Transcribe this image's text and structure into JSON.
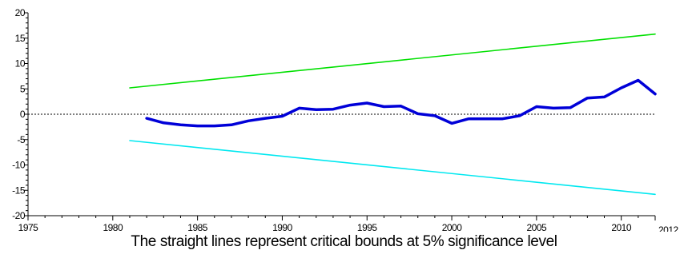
{
  "chart_data": {
    "type": "line",
    "title": "",
    "xlabel": "",
    "ylabel": "",
    "xlim": [
      1975,
      2012
    ],
    "ylim": [
      -20,
      20
    ],
    "x_ticks": [
      1975,
      1980,
      1985,
      1990,
      1995,
      2000,
      2005,
      2010,
      2012
    ],
    "y_ticks": [
      -20,
      -15,
      -10,
      -5,
      0,
      5,
      10,
      15,
      20
    ],
    "x_tick_labels": [
      "1975",
      "1980",
      "1985",
      "1990",
      "1995",
      "2000",
      "2005",
      "2010",
      "2012"
    ],
    "y_tick_labels": [
      "-20",
      "-15",
      "-10",
      "-5",
      "0",
      "5",
      "10",
      "15",
      "20"
    ],
    "zero_line": true,
    "grid": false,
    "series": [
      {
        "role": "upper-critical-bound",
        "color": "#00e000",
        "x": [
          1981,
          2012
        ],
        "y": [
          5.2,
          15.8
        ]
      },
      {
        "role": "lower-critical-bound",
        "color": "#00e8f0",
        "x": [
          1981,
          2012
        ],
        "y": [
          -5.2,
          -15.8
        ]
      },
      {
        "role": "cusum",
        "color": "#0000d8",
        "x": [
          1982,
          1983,
          1984,
          1985,
          1986,
          1987,
          1988,
          1989,
          1990,
          1991,
          1992,
          1993,
          1994,
          1995,
          1996,
          1997,
          1998,
          1999,
          2000,
          2001,
          2002,
          2003,
          2004,
          2005,
          2006,
          2007,
          2008,
          2009,
          2010,
          2011,
          2012
        ],
        "y": [
          -0.8,
          -1.7,
          -2.1,
          -2.3,
          -2.3,
          -2.1,
          -1.3,
          -0.8,
          -0.4,
          1.2,
          0.9,
          1.0,
          1.8,
          2.2,
          1.5,
          1.6,
          0.1,
          -0.3,
          -1.8,
          -0.9,
          -0.9,
          -0.9,
          -0.3,
          1.5,
          1.2,
          1.3,
          3.2,
          3.4,
          5.2,
          6.7,
          4.0
        ]
      }
    ]
  },
  "caption": "The straight lines represent critical bounds at 5% significance level"
}
